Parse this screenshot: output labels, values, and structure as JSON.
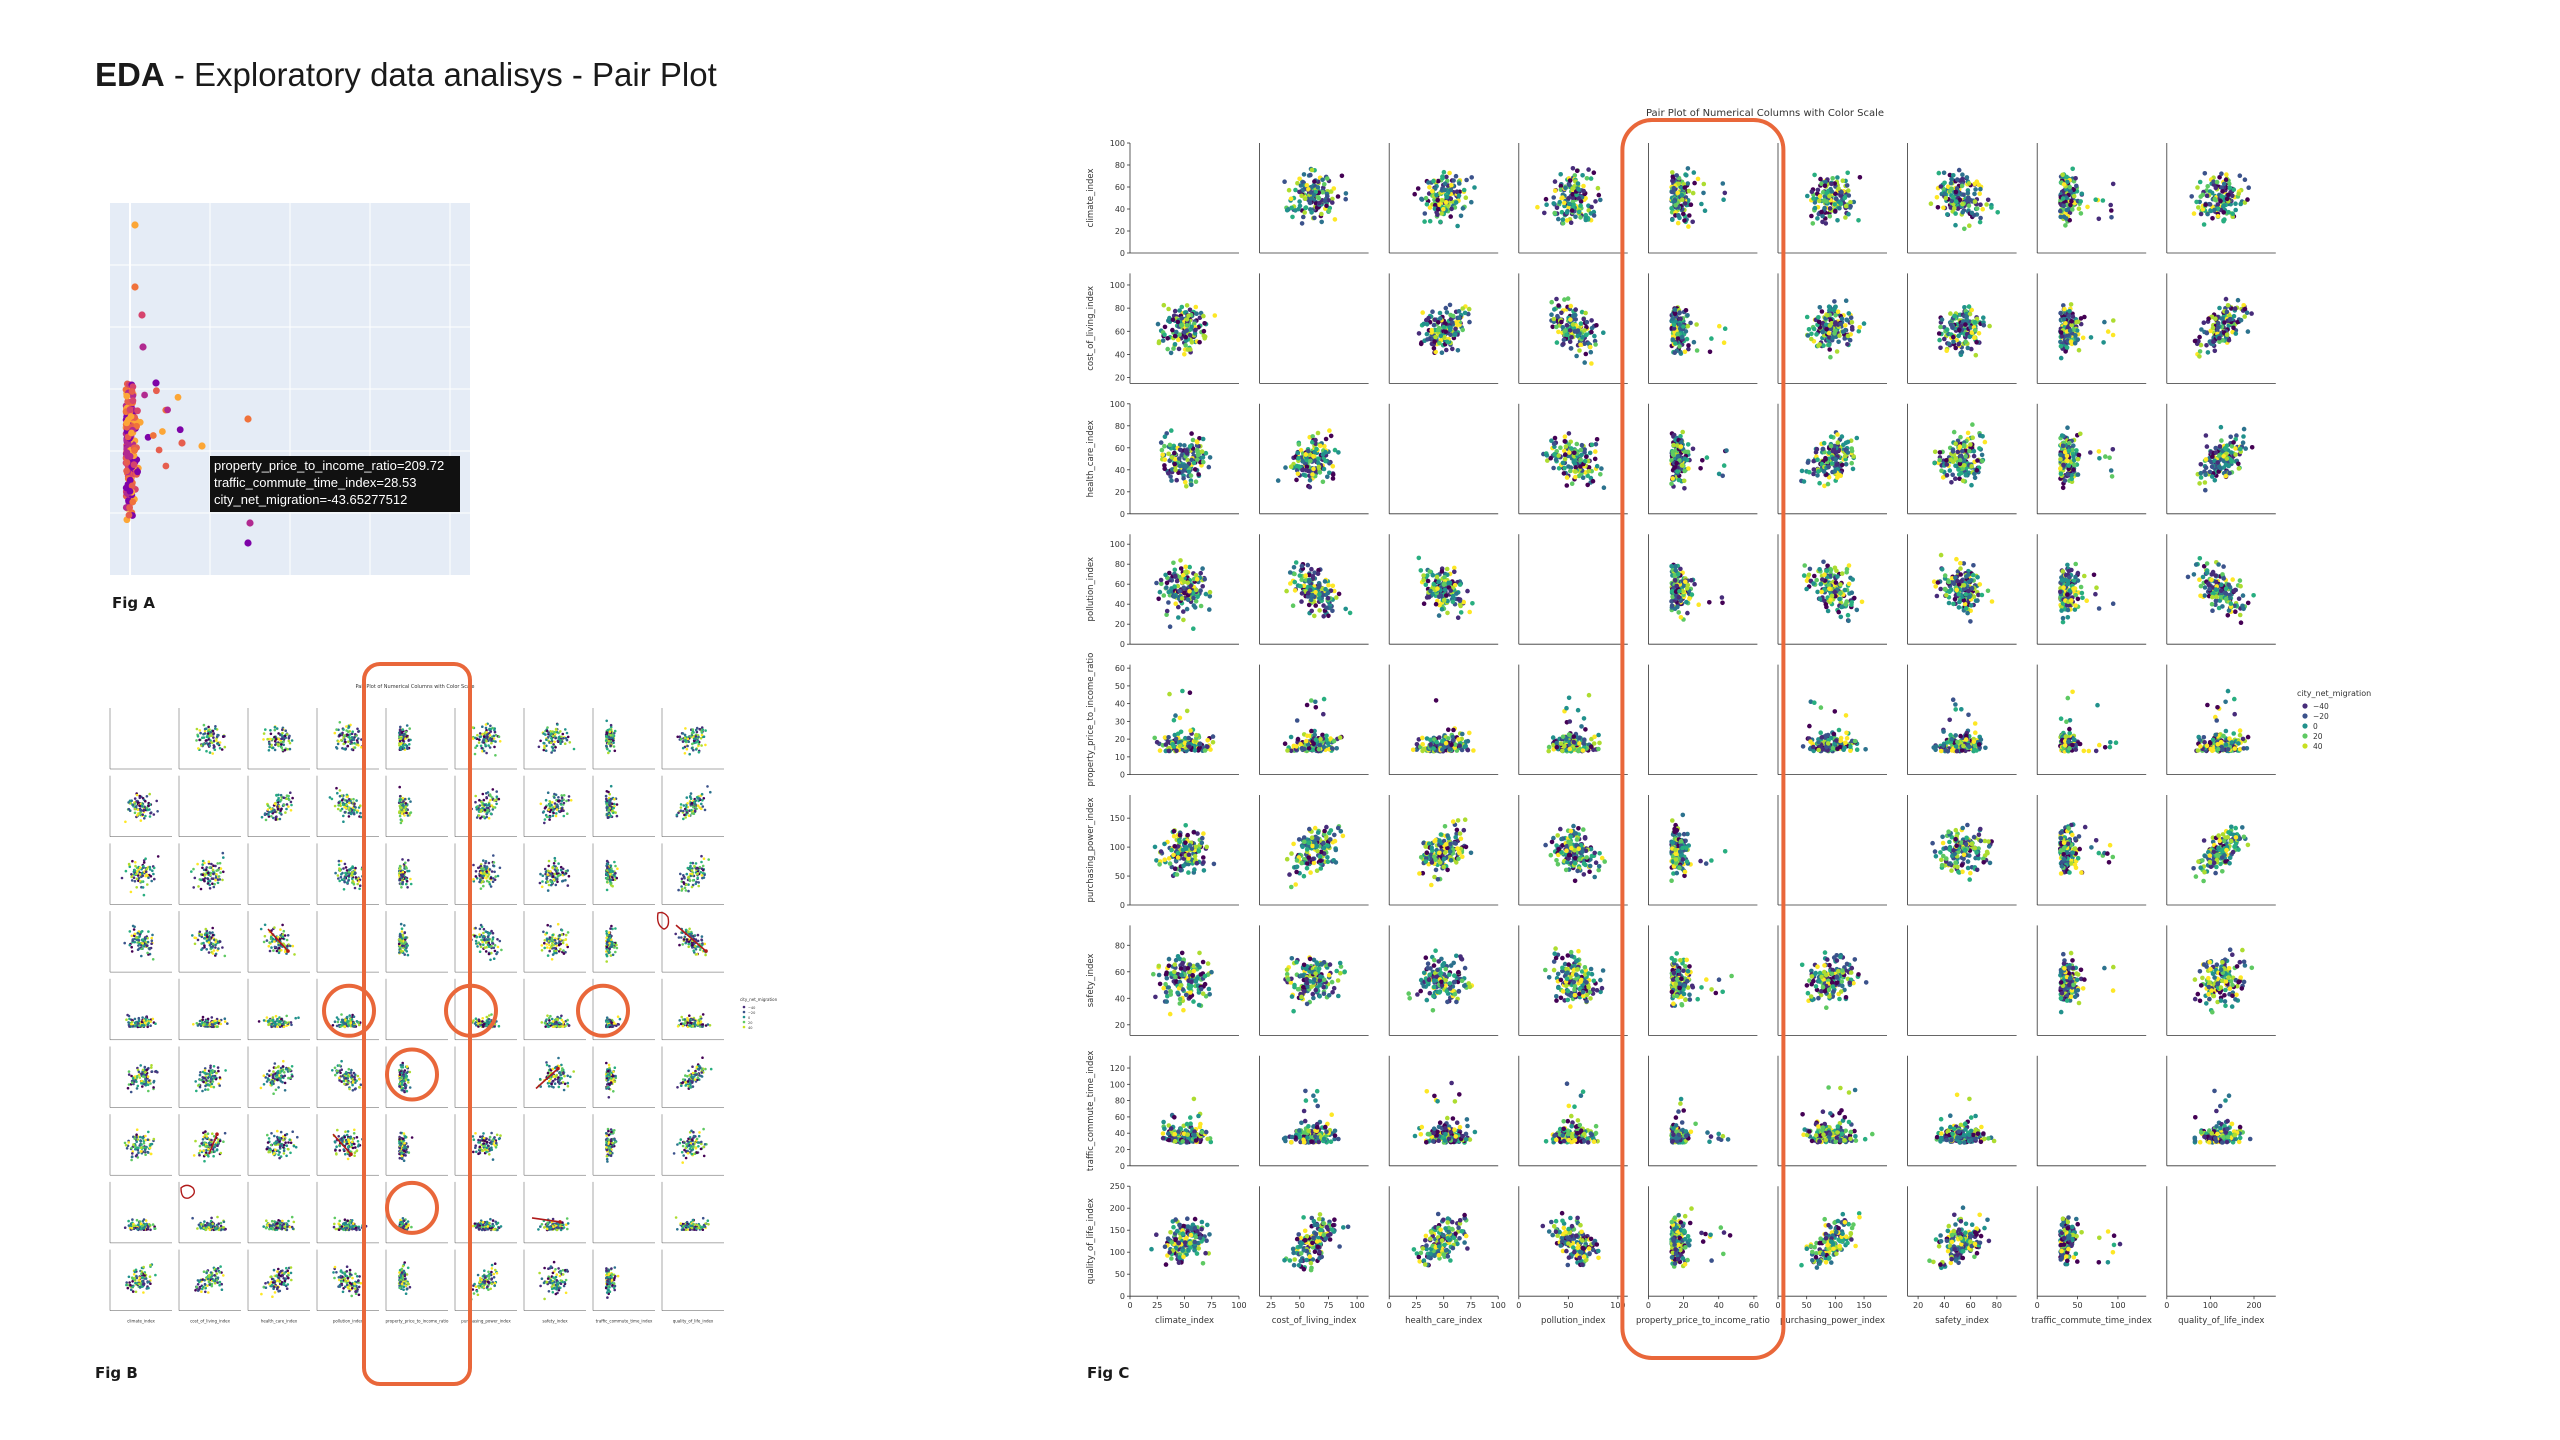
{
  "page": {
    "title_bold": "EDA",
    "title_rest": " - Exploratory data analisys - Pair Plot",
    "fig_a_caption": "Fig A",
    "fig_b_caption": "Fig B",
    "fig_c_caption": "Fig C"
  },
  "highlight_color": "#e9673a",
  "fig_a": {
    "tooltip_lines": [
      "property_price_to_income_ratio=209.72",
      "traffic_commute_time_index=28.53",
      "city_net_migration=-43.65277512"
    ],
    "plot_bg": "#e5ecf6",
    "colors": [
      "#fca636",
      "#f0723b",
      "#d6446d",
      "#b12a90",
      "#7e03a8",
      "#e65e4e"
    ]
  },
  "chart_data": [
    {
      "type": "scatter",
      "id": "fig_c",
      "title": "Pair Plot of Numerical Columns with Color Scale",
      "variables": [
        "climate_index",
        "cost_of_living_index",
        "health_care_index",
        "pollution_index",
        "property_price_to_income_ratio",
        "purchasing_power_index",
        "safety_index",
        "traffic_commute_time_index",
        "quality_of_life_index"
      ],
      "x_ticks": [
        [
          0,
          25,
          50,
          75,
          100
        ],
        [
          25,
          50,
          75,
          100
        ],
        [
          0,
          25,
          50,
          75,
          100
        ],
        [
          0,
          50,
          100
        ],
        [
          0,
          20,
          40,
          60
        ],
        [
          0,
          50,
          100,
          150
        ],
        [
          20,
          40,
          60,
          80
        ],
        [
          0,
          50,
          100
        ],
        [
          0,
          100,
          200
        ]
      ],
      "y_ticks": [
        [
          0,
          20,
          40,
          60,
          80,
          100
        ],
        [
          20,
          40,
          60,
          80,
          100
        ],
        [
          0,
          20,
          40,
          60,
          80,
          100
        ],
        [
          0,
          20,
          40,
          60,
          80,
          100
        ],
        [
          0,
          10,
          20,
          30,
          40,
          50,
          60
        ],
        [
          0,
          50,
          100,
          150
        ],
        [
          20,
          40,
          60,
          80
        ],
        [
          0,
          20,
          40,
          60,
          80,
          100,
          120
        ],
        [
          0,
          50,
          100,
          150,
          200,
          250
        ]
      ],
      "ranges": [
        [
          0,
          100
        ],
        [
          15,
          110
        ],
        [
          0,
          100
        ],
        [
          0,
          110
        ],
        [
          0,
          62
        ],
        [
          0,
          190
        ],
        [
          12,
          95
        ],
        [
          0,
          135
        ],
        [
          0,
          250
        ]
      ],
      "legend": {
        "title": "city_net_migration",
        "labels": [
          "−40",
          "−20",
          "0",
          "20",
          "40"
        ],
        "colors": [
          "#472c7a",
          "#3b528b",
          "#21918c",
          "#5ec962",
          "#c8e020"
        ],
        "placement": "right"
      },
      "palette": [
        "#440154",
        "#472c7a",
        "#3b528b",
        "#2c728e",
        "#21918c",
        "#28ae80",
        "#5ec962",
        "#addc30",
        "#fde725"
      ],
      "diagonal": "empty",
      "highlight": "property_price_to_income_ratio column"
    }
  ]
}
